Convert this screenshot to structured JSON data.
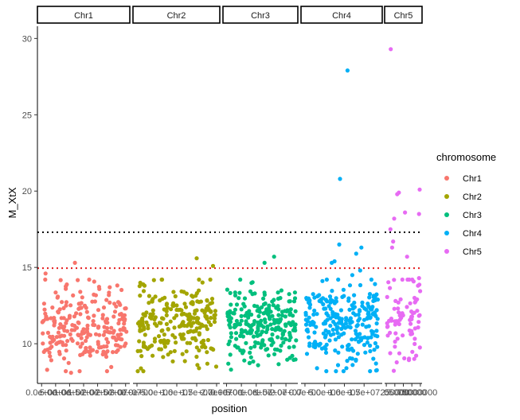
{
  "chart_data": {
    "type": "scatter",
    "xlabel": "position",
    "ylabel": "M_XtX",
    "ylim": [
      7.4,
      30.8
    ],
    "y_ticks": [
      10,
      15,
      20,
      25,
      30
    ],
    "thresholds": [
      {
        "value": 17.3,
        "color": "#000000",
        "style": "dotted"
      },
      {
        "value": 14.95,
        "color": "#e41a1c",
        "style": "dotted"
      }
    ],
    "legend": {
      "title": "chromosome",
      "position": "right",
      "entries": [
        {
          "label": "Chr1",
          "color": "#F8766D"
        },
        {
          "label": "Chr2",
          "color": "#A3A500"
        },
        {
          "label": "Chr3",
          "color": "#00BF7D"
        },
        {
          "label": "Chr4",
          "color": "#00B0F6"
        },
        {
          "label": "Chr5",
          "color": "#E76BF3"
        }
      ]
    },
    "panels": [
      {
        "name": "Chr1",
        "color": "#F8766D",
        "x_tick_labels": [
          "0.0e+00",
          "5.0e+06",
          "1.0e+07",
          "1.5e+07",
          "2.0e+07",
          "2.5e+07",
          "3.0e+07"
        ],
        "x_tick_values": [
          0,
          5000000,
          10000000,
          15000000,
          20000000,
          25000000,
          30000000
        ],
        "xlim": [
          -1500000,
          31500000
        ],
        "n": 240,
        "x_range": [
          200000,
          30300000
        ],
        "y_center": 11.1,
        "y_sd": 1.3,
        "outliers": [
          [
            1400000,
            14.6
          ],
          [
            11900000,
            15.3
          ],
          [
            17000000,
            14.2
          ],
          [
            10500000,
            8.1
          ]
        ]
      },
      {
        "name": "Chr2",
        "color": "#A3A500",
        "x_tick_labels": [
          "0.0e+00",
          "5.0e+06",
          "1.0e+07",
          "1.5e+07",
          "2.0e+07"
        ],
        "x_tick_values": [
          0,
          5000000,
          10000000,
          15000000,
          20000000
        ],
        "xlim": [
          -1000000,
          20800000
        ],
        "n": 240,
        "x_range": [
          200000,
          19700000
        ],
        "y_center": 11.2,
        "y_sd": 1.3,
        "outliers": [
          [
            15000000,
            15.6
          ],
          [
            19100000,
            15.1
          ],
          [
            200000,
            8.2
          ],
          [
            19900000,
            8.5
          ]
        ]
      },
      {
        "name": "Chr3",
        "color": "#00BF7D",
        "x_tick_labels": [
          "0.0e+00",
          "5.0e+06",
          "1.0e+07",
          "1.5e+07",
          "2.0e+07"
        ],
        "x_tick_values": [
          0,
          5000000,
          10000000,
          15000000,
          20000000
        ],
        "xlim": [
          -1200000,
          24000000
        ],
        "n": 250,
        "x_range": [
          200000,
          23400000
        ],
        "y_center": 11.3,
        "y_sd": 1.3,
        "outliers": [
          [
            12800000,
            15.3
          ],
          [
            16000000,
            15.7
          ],
          [
            1500000,
            8.3
          ]
        ]
      },
      {
        "name": "Chr4",
        "color": "#00B0F6",
        "x_tick_labels": [
          "0.0e+00",
          "5.0e+06",
          "1.0e+07",
          "1.5e+07"
        ],
        "x_tick_values": [
          0,
          5000000,
          10000000,
          15000000
        ],
        "xlim": [
          -1000000,
          19600000
        ],
        "n": 250,
        "x_range": [
          200000,
          18500000
        ],
        "y_center": 11.3,
        "y_sd": 1.35,
        "outliers": [
          [
            10800000,
            27.9
          ],
          [
            8900000,
            20.8
          ],
          [
            8700000,
            16.5
          ],
          [
            14300000,
            16.3
          ],
          [
            13000000,
            15.9
          ],
          [
            7500000,
            15.4
          ],
          [
            6800000,
            15.3
          ],
          [
            14000000,
            14.8
          ],
          [
            12000000,
            14.5
          ],
          [
            8400000,
            8.6
          ],
          [
            16500000,
            8.2
          ]
        ]
      },
      {
        "name": "Chr5",
        "color": "#E76BF3",
        "x_tick_labels": [
          "0",
          "250000",
          "500000",
          "750000",
          "1000000"
        ],
        "x_tick_values": [
          0,
          250000,
          500000,
          750000,
          1000000
        ],
        "xlim": [
          -50000,
          1050000
        ],
        "n": 80,
        "x_range": [
          10000,
          1000000
        ],
        "y_center": 11.2,
        "y_sd": 1.4,
        "outliers": [
          [
            130000,
            29.3
          ],
          [
            320000,
            19.8
          ],
          [
            370000,
            19.9
          ],
          [
            550000,
            18.6
          ],
          [
            980000,
            20.1
          ],
          [
            960000,
            18.5
          ],
          [
            120000,
            17.5
          ],
          [
            230000,
            18.2
          ],
          [
            200000,
            16.7
          ],
          [
            170000,
            16.3
          ],
          [
            610000,
            15.7
          ],
          [
            960000,
            14.3
          ],
          [
            930000,
            13.8
          ]
        ]
      }
    ]
  }
}
